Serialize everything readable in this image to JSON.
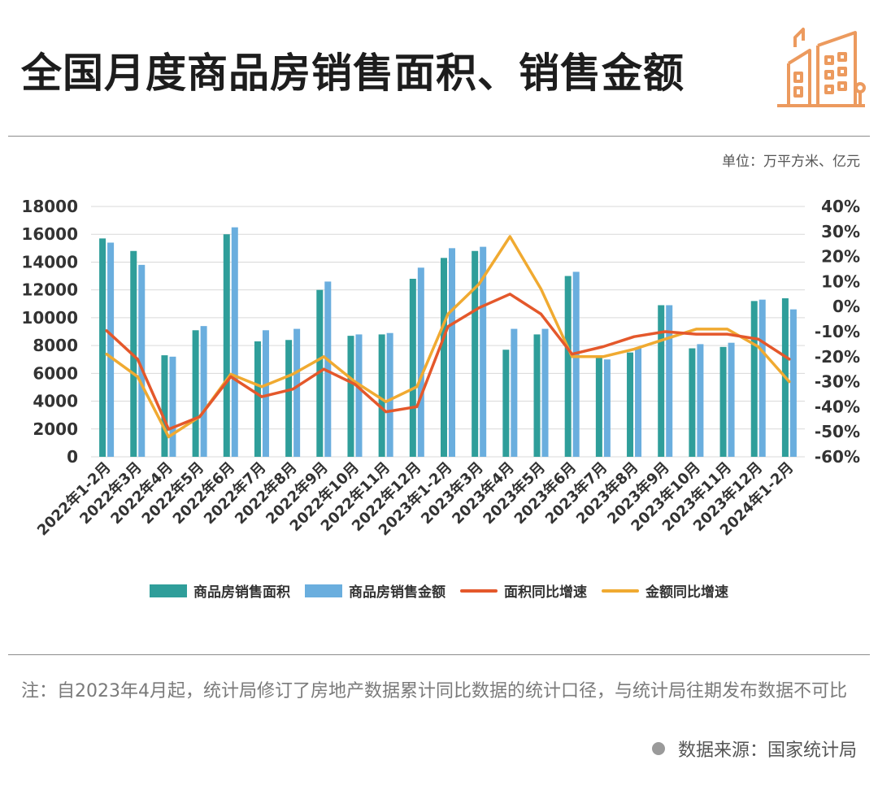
{
  "title": "全国月度商品房销售面积、销售金额",
  "unit_label": "单位：万平方米、亿元",
  "legend": {
    "area": "商品房销售面积",
    "amount": "商品房销售金额",
    "area_growth": "面积同比增速",
    "amount_growth": "金额同比增速"
  },
  "note": "注：自2023年4月起，统计局修订了房地产数据累计同比数据的统计口径，与统计局往期发布数据不可比",
  "source": "数据来源：国家统计局",
  "colors": {
    "area_bar": "#2f9e9a",
    "amount_bar": "#6aaede",
    "area_line": "#e4582b",
    "amount_line": "#f0aa31",
    "grid": "#d9d9d9",
    "logo": "#ec9a5e"
  },
  "chart_data": {
    "type": "bar",
    "categories": [
      "2022年1-2月",
      "2022年3月",
      "2022年4月",
      "2022年5月",
      "2022年6月",
      "2022年7月",
      "2022年8月",
      "2022年9月",
      "2022年10月",
      "2022年11月",
      "2022年12月",
      "2023年1-2月",
      "2023年3月",
      "2023年4月",
      "2023年5月",
      "2023年6月",
      "2023年7月",
      "2023年8月",
      "2023年9月",
      "2023年10月",
      "2023年11月",
      "2023年12月",
      "2024年1-2月"
    ],
    "series": [
      {
        "name": "商品房销售面积",
        "axis": "left",
        "kind": "bar",
        "values": [
          15700,
          14800,
          7300,
          9100,
          16000,
          8300,
          8400,
          12000,
          8700,
          8800,
          12800,
          14300,
          14800,
          7700,
          8800,
          13000,
          7100,
          7500,
          10900,
          7800,
          7900,
          11200,
          11400
        ]
      },
      {
        "name": "商品房销售金额",
        "axis": "left",
        "kind": "bar",
        "values": [
          15400,
          13800,
          7200,
          9400,
          16500,
          9100,
          9200,
          12600,
          8800,
          8900,
          13600,
          15000,
          15100,
          9200,
          9200,
          13300,
          7000,
          7800,
          10900,
          8100,
          8200,
          11300,
          10600
        ]
      },
      {
        "name": "面积同比增速",
        "axis": "right",
        "kind": "line",
        "values": [
          -9.6,
          -21,
          -49,
          -44,
          -28,
          -36,
          -33,
          -25,
          -31,
          -42,
          -40,
          -8,
          -0.5,
          5,
          -3,
          -19,
          -16,
          -12,
          -10,
          -11,
          -11,
          -13,
          -21
        ]
      },
      {
        "name": "金额同比增速",
        "axis": "right",
        "kind": "line",
        "values": [
          -19,
          -28,
          -52,
          -44,
          -27,
          -32,
          -27,
          -20,
          -30,
          -38,
          -32,
          -3,
          9,
          28,
          7,
          -20,
          -20,
          -17,
          -13,
          -9,
          -9,
          -16,
          -30
        ]
      }
    ],
    "y_left": {
      "min": 0,
      "max": 18000,
      "ticks": [
        0,
        2000,
        4000,
        6000,
        8000,
        10000,
        12000,
        14000,
        16000,
        18000
      ]
    },
    "y_right": {
      "min": -60,
      "max": 40,
      "ticks": [
        "-60%",
        "-50%",
        "-40%",
        "-30%",
        "-20%",
        "-10%",
        "0%",
        "10%",
        "20%",
        "30%",
        "40%"
      ]
    },
    "grid": true,
    "legend_position": "bottom"
  }
}
